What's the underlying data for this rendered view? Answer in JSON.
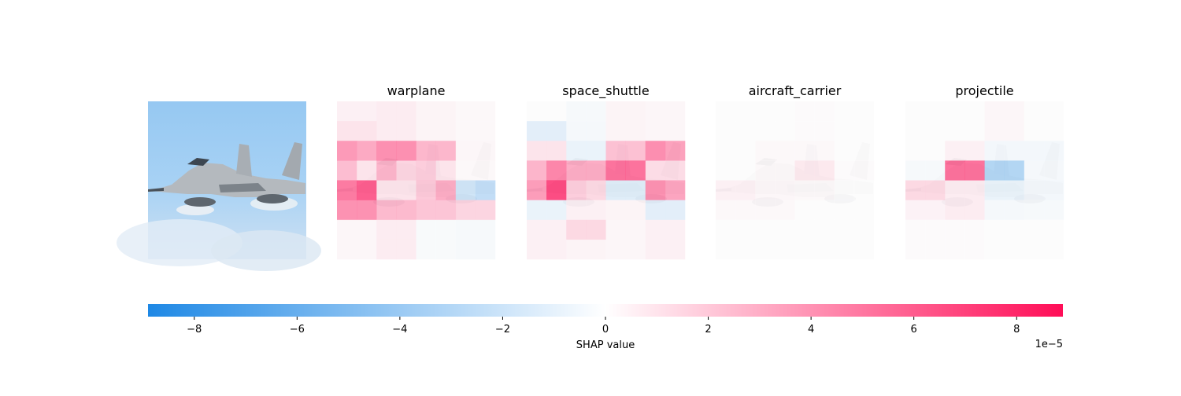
{
  "chart_data": {
    "type": "heatmap",
    "title": "",
    "colorbar": {
      "label": "SHAP value",
      "offset_text": "1e−5",
      "vmin": -8.9,
      "vmax": 8.9,
      "ticks": [
        -8,
        -6,
        -4,
        -2,
        0,
        2,
        4,
        6,
        8
      ],
      "tick_labels": [
        "−8",
        "−6",
        "−4",
        "−2",
        "0",
        "2",
        "4",
        "6",
        "8"
      ],
      "colors": {
        "negative": "#1e88e5",
        "neutral": "#ffffff",
        "positive": "#ff0d57"
      }
    },
    "original_image": {
      "subject": "warplane",
      "colors": {
        "sky": "#9ccbf0",
        "cloud": "#dce8f4",
        "body": "#b8bcc0"
      }
    },
    "grid_size": 8,
    "panels": [
      {
        "name": "warplane",
        "values": [
          [
            0.6,
            0.6,
            0.8,
            0.8,
            0.4,
            0.4,
            0.2,
            0.2
          ],
          [
            1.2,
            1.2,
            0.8,
            0.8,
            0.4,
            0.4,
            0.2,
            0.2
          ],
          [
            5.0,
            4.2,
            5.5,
            5.5,
            3.5,
            3.5,
            0.3,
            0.3
          ],
          [
            3.2,
            1.2,
            3.6,
            2.0,
            2.4,
            1.2,
            0.2,
            0.2
          ],
          [
            6.6,
            8.0,
            1.2,
            1.2,
            2.6,
            4.0,
            -2.4,
            -3.2
          ],
          [
            5.4,
            5.4,
            3.4,
            3.4,
            2.8,
            2.8,
            2.0,
            2.0
          ],
          [
            0.3,
            0.3,
            0.8,
            0.8,
            -0.2,
            -0.2,
            -0.3,
            -0.3
          ],
          [
            0.3,
            0.3,
            0.8,
            0.8,
            -0.2,
            -0.2,
            -0.3,
            -0.3
          ]
        ]
      },
      {
        "name": "space_shuttle",
        "values": [
          [
            0.0,
            0.0,
            -0.3,
            -0.3,
            0.4,
            0.4,
            0.3,
            0.3
          ],
          [
            -1.4,
            -1.4,
            -0.4,
            -0.4,
            0.4,
            0.4,
            0.3,
            0.3
          ],
          [
            1.2,
            1.2,
            -1.0,
            -1.0,
            3.0,
            3.0,
            5.6,
            4.6
          ],
          [
            3.6,
            6.0,
            4.0,
            4.0,
            7.0,
            7.0,
            1.6,
            1.6
          ],
          [
            4.8,
            9.4,
            2.4,
            1.8,
            -1.6,
            -1.6,
            5.4,
            4.4
          ],
          [
            -1.0,
            -1.0,
            0.6,
            0.6,
            0.4,
            0.4,
            -1.4,
            -1.4
          ],
          [
            0.6,
            0.6,
            1.8,
            1.8,
            0.3,
            0.3,
            0.6,
            0.6
          ],
          [
            0.6,
            0.6,
            0.4,
            0.4,
            0.3,
            0.3,
            0.6,
            0.6
          ]
        ]
      },
      {
        "name": "aircraft_carrier",
        "values": [
          [
            0.0,
            0.0,
            0.0,
            0.0,
            0.1,
            0.1,
            0.0,
            0.0
          ],
          [
            0.0,
            0.0,
            0.0,
            0.0,
            0.1,
            0.1,
            0.0,
            0.0
          ],
          [
            0.0,
            0.0,
            0.2,
            0.2,
            0.2,
            0.2,
            0.0,
            0.0
          ],
          [
            0.0,
            0.0,
            0.2,
            0.2,
            1.0,
            1.0,
            0.1,
            0.1
          ],
          [
            0.6,
            0.6,
            0.3,
            0.3,
            0.2,
            0.2,
            0.0,
            0.0
          ],
          [
            0.2,
            0.2,
            0.2,
            0.2,
            0.0,
            0.0,
            0.0,
            0.0
          ],
          [
            0.0,
            0.0,
            0.0,
            0.0,
            0.0,
            0.0,
            0.0,
            0.0
          ],
          [
            0.0,
            0.0,
            0.0,
            0.0,
            0.0,
            0.0,
            0.0,
            0.0
          ]
        ]
      },
      {
        "name": "projectile",
        "values": [
          [
            0.0,
            0.0,
            0.0,
            0.0,
            0.3,
            0.3,
            0.0,
            0.0
          ],
          [
            0.0,
            0.0,
            0.0,
            0.0,
            0.3,
            0.3,
            0.0,
            0.0
          ],
          [
            0.0,
            0.0,
            0.6,
            0.6,
            -0.5,
            -0.5,
            -0.5,
            -0.5
          ],
          [
            -0.3,
            -0.3,
            7.0,
            7.0,
            -4.0,
            -4.0,
            -0.4,
            -0.4
          ],
          [
            1.8,
            1.8,
            0.8,
            0.8,
            -1.0,
            -1.0,
            -0.5,
            -0.5
          ],
          [
            0.5,
            0.5,
            0.8,
            0.8,
            -0.4,
            -0.4,
            -0.3,
            -0.3
          ],
          [
            0.1,
            0.1,
            0.1,
            0.1,
            0.0,
            0.0,
            0.0,
            0.0
          ],
          [
            0.1,
            0.1,
            0.1,
            0.1,
            0.0,
            0.0,
            0.0,
            0.0
          ]
        ]
      }
    ]
  }
}
